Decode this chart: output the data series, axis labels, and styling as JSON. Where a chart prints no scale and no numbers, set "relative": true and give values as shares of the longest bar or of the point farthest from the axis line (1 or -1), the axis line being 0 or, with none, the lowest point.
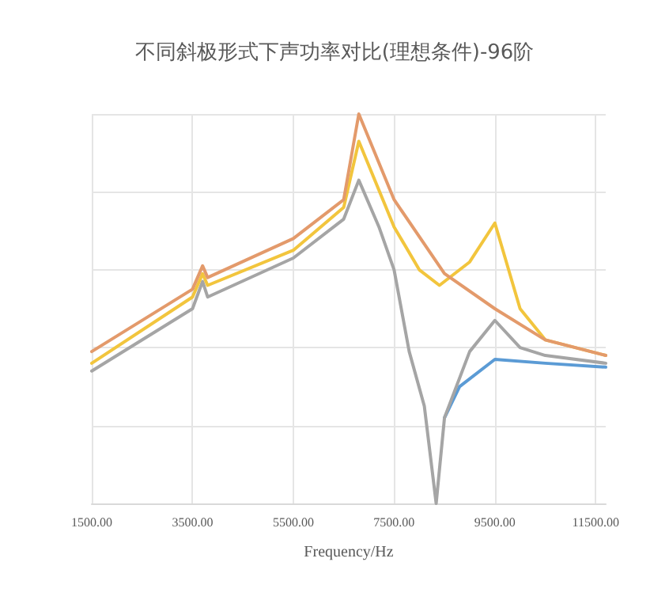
{
  "chart_data": {
    "type": "line",
    "title": "不同斜极形式下声功率对比(理想条件)-96阶",
    "xlabel": "Frequency/Hz",
    "relative": true,
    "grid": true,
    "tick_labels": "x",
    "marker": "none",
    "line_style": "solid",
    "xlim": [
      1500,
      11700
    ],
    "xticks": [
      {
        "value": 1500,
        "label": "1500.00"
      },
      {
        "value": 3500,
        "label": "3500.00"
      },
      {
        "value": 5500,
        "label": "5500.00"
      },
      {
        "value": 7500,
        "label": "7500.00"
      },
      {
        "value": 9500,
        "label": "9500.00"
      },
      {
        "value": 11500,
        "label": "11500.00"
      }
    ],
    "series": [
      {
        "color": "#5b9bd5",
        "x": [
          8500,
          8800,
          9500,
          10500,
          11700
        ],
        "values": [
          0.22,
          0.3,
          0.37,
          0.36,
          0.35
        ]
      },
      {
        "color": "#a5a5a5",
        "x": [
          1500,
          3500,
          3700,
          3800,
          5500,
          6500,
          6800,
          7200,
          7500,
          7800,
          8100,
          8335,
          8500,
          9000,
          9500,
          10000,
          10500,
          11700
        ],
        "values": [
          0.34,
          0.5,
          0.57,
          0.53,
          0.63,
          0.73,
          0.83,
          0.71,
          0.6,
          0.39,
          0.25,
          0,
          0.22,
          0.39,
          0.47,
          0.4,
          0.38,
          0.36
        ]
      },
      {
        "color": "#f2c53d",
        "x": [
          1500,
          3500,
          3700,
          3800,
          5500,
          6500,
          6800,
          7500,
          8000,
          8400,
          9000,
          9500,
          10000,
          10500,
          11700
        ],
        "values": [
          0.36,
          0.53,
          0.59,
          0.56,
          0.65,
          0.76,
          0.93,
          0.71,
          0.6,
          0.56,
          0.62,
          0.72,
          0.5,
          0.42,
          0.38
        ]
      },
      {
        "color": "#e39a6b",
        "x": [
          1500,
          3500,
          3700,
          3800,
          5500,
          6500,
          6800,
          7500,
          8500,
          9500,
          10500,
          11700
        ],
        "values": [
          0.39,
          0.55,
          0.61,
          0.58,
          0.68,
          0.78,
          1,
          0.78,
          0.59,
          0.5,
          0.42,
          0.38
        ]
      }
    ]
  }
}
